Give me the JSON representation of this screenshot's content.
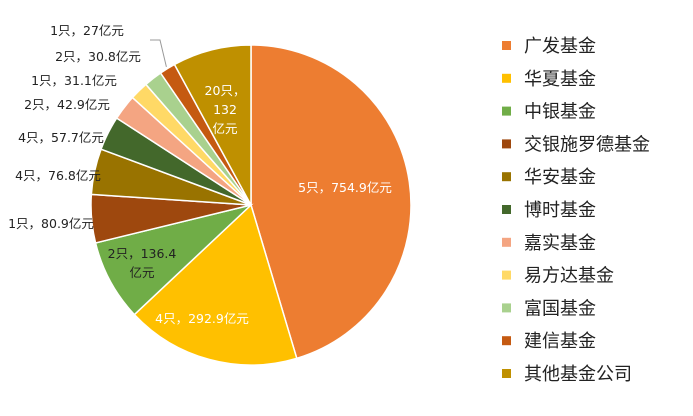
{
  "chart_data": {
    "type": "pie",
    "unit": "亿元",
    "slices": [
      {
        "name": "广发基金",
        "count": 5,
        "value": 754.9,
        "label": "5只，754.9亿元",
        "color": "#ED7D31"
      },
      {
        "name": "华夏基金",
        "count": 4,
        "value": 292.9,
        "label": "4只，292.9亿元",
        "color": "#FFC000"
      },
      {
        "name": "中银基金",
        "count": 2,
        "value": 136.4,
        "label": "2只，136.4亿元",
        "color": "#70AD47"
      },
      {
        "name": "交银施罗德基金",
        "count": 1,
        "value": 80.9,
        "label": "1只，80.9亿元",
        "color": "#9E480E"
      },
      {
        "name": "华安基金",
        "count": 4,
        "value": 76.8,
        "label": "4只，76.8亿元",
        "color": "#997300"
      },
      {
        "name": "博时基金",
        "count": 4,
        "value": 57.7,
        "label": "4只，57.7亿元",
        "color": "#43682B"
      },
      {
        "name": "嘉实基金",
        "count": 2,
        "value": 42.9,
        "label": "2只，42.9亿元",
        "color": "#F4A582"
      },
      {
        "name": "易方达基金",
        "count": 1,
        "value": 31.1,
        "label": "1只，31.1亿元",
        "color": "#FFD966"
      },
      {
        "name": "富国基金",
        "count": 2,
        "value": 30.8,
        "label": "2只，30.8亿元",
        "color": "#A9D18E"
      },
      {
        "name": "建信基金",
        "count": 1,
        "value": 27,
        "label": "1只，27亿元",
        "color": "#C55A11"
      },
      {
        "name": "其他基金公司",
        "count": 20,
        "value": 132,
        "label": "20只，132亿元",
        "color": "#BF9000"
      }
    ],
    "legend_position": "right"
  }
}
